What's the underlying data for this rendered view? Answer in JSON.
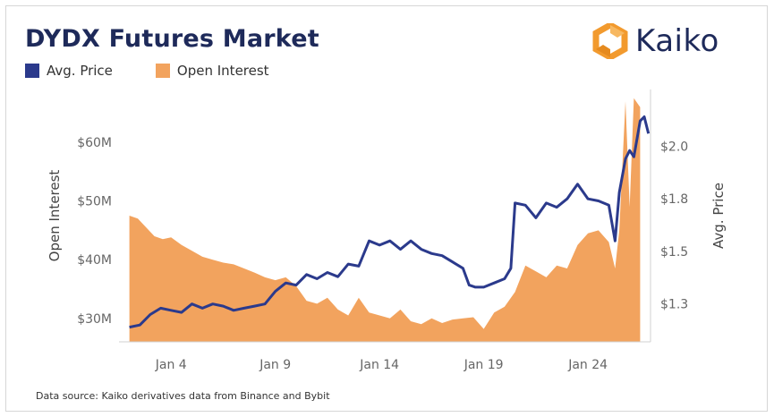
{
  "title": "DYDX Futures Market",
  "brand": "Kaiko",
  "source": "Data source: Kaiko derivatives data from Binance and Bybit",
  "colors": {
    "price": "#2b3a8c",
    "oi": "#f2a35e",
    "title": "#1e2a5a",
    "logo_orange": "#f29a2e"
  },
  "chart_data": {
    "type": "line",
    "legend": {
      "placement": "top-left",
      "entries": [
        "Avg. Price",
        "Open Interest"
      ]
    },
    "grid": false,
    "x_ticks": [
      "Jan 4",
      "Jan 9",
      "Jan 14",
      "Jan 19",
      "Jan 24"
    ],
    "x_tick_days": [
      4,
      9,
      14,
      19,
      24
    ],
    "xlim_days": [
      1.5,
      27
    ],
    "y_left": {
      "label": "Open Interest",
      "ticks": [
        "$30M",
        "$40M",
        "$50M",
        "$60M"
      ],
      "tick_values": [
        30,
        40,
        50,
        60
      ],
      "lim": [
        26,
        69
      ]
    },
    "y_right": {
      "label": "Avg. Price",
      "ticks": [
        "$1.3",
        "$1.5",
        "$1.8",
        "$2.0"
      ],
      "tick_values": [
        1.25,
        1.5,
        1.75,
        2.0
      ],
      "lim": [
        1.07,
        2.27
      ]
    },
    "series": [
      {
        "name": "Open Interest",
        "type": "area",
        "x": [
          2.0,
          2.4,
          2.8,
          3.2,
          3.6,
          4.0,
          4.5,
          5.0,
          5.5,
          6.0,
          6.5,
          7.0,
          7.5,
          8.0,
          8.5,
          9.0,
          9.5,
          10.0,
          10.5,
          11.0,
          11.5,
          12.0,
          12.5,
          13.0,
          13.5,
          14.0,
          14.5,
          15.0,
          15.5,
          16.0,
          16.5,
          17.0,
          17.5,
          18.0,
          18.5,
          19.0,
          19.5,
          20.0,
          20.5,
          21.0,
          21.5,
          22.0,
          22.5,
          23.0,
          23.5,
          24.0,
          24.5,
          25.0,
          25.3,
          25.5,
          25.8,
          26.0,
          26.2,
          26.5
        ],
        "values": [
          47.5,
          47,
          45.5,
          44,
          43.5,
          43.8,
          42.5,
          41.5,
          40.5,
          40,
          39.5,
          39.2,
          38.5,
          37.8,
          37,
          36.5,
          37,
          35.5,
          33,
          32.5,
          33.5,
          31.5,
          30.5,
          33.5,
          31,
          30.5,
          30,
          31.5,
          29.5,
          29,
          30,
          29.2,
          29.8,
          30,
          30.2,
          28.2,
          31,
          32,
          34.5,
          39,
          38,
          37,
          39,
          38.5,
          42.5,
          44.5,
          45,
          43,
          38.5,
          45,
          67,
          49,
          67.5,
          66
        ]
      },
      {
        "name": "Avg. Price",
        "type": "line",
        "x": [
          2.0,
          2.5,
          3.0,
          3.5,
          4.0,
          4.5,
          5.0,
          5.5,
          6.0,
          6.5,
          7.0,
          7.5,
          8.0,
          8.5,
          9.0,
          9.5,
          10.0,
          10.5,
          11.0,
          11.5,
          12.0,
          12.5,
          13.0,
          13.5,
          14.0,
          14.5,
          15.0,
          15.5,
          16.0,
          16.5,
          17.0,
          17.5,
          18.0,
          18.3,
          18.6,
          19.0,
          19.5,
          20.0,
          20.3,
          20.5,
          21.0,
          21.5,
          22.0,
          22.5,
          23.0,
          23.5,
          24.0,
          24.5,
          25.0,
          25.3,
          25.5,
          25.8,
          26.0,
          26.2,
          26.5,
          26.7,
          26.9
        ],
        "values": [
          1.14,
          1.15,
          1.2,
          1.23,
          1.22,
          1.21,
          1.25,
          1.23,
          1.25,
          1.24,
          1.22,
          1.23,
          1.24,
          1.25,
          1.31,
          1.35,
          1.34,
          1.39,
          1.37,
          1.4,
          1.38,
          1.44,
          1.43,
          1.55,
          1.53,
          1.55,
          1.51,
          1.55,
          1.51,
          1.49,
          1.48,
          1.45,
          1.42,
          1.34,
          1.33,
          1.33,
          1.35,
          1.37,
          1.42,
          1.73,
          1.72,
          1.66,
          1.73,
          1.71,
          1.75,
          1.82,
          1.75,
          1.74,
          1.72,
          1.55,
          1.78,
          1.94,
          1.98,
          1.95,
          2.12,
          2.14,
          2.06
        ]
      }
    ]
  }
}
